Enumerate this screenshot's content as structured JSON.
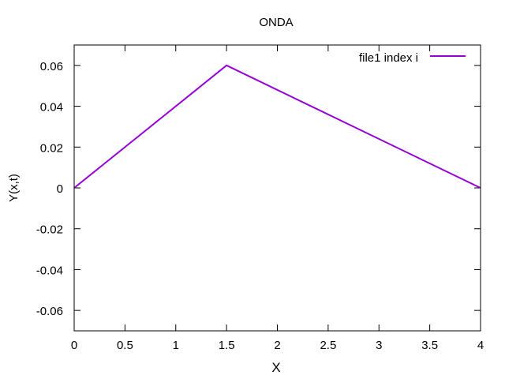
{
  "chart_data": {
    "type": "line",
    "title": "ONDA",
    "xlabel": "X",
    "ylabel": "Y(x,t)",
    "xlim": [
      0,
      4
    ],
    "ylim": [
      -0.07,
      0.07
    ],
    "xticks": [
      "0",
      "0.5",
      "1",
      "1.5",
      "2",
      "2.5",
      "3",
      "3.5",
      "4"
    ],
    "xtick_values": [
      0,
      0.5,
      1,
      1.5,
      2,
      2.5,
      3,
      3.5,
      4
    ],
    "yticks": [
      "-0.06",
      "-0.04",
      "-0.02",
      "0",
      "0.02",
      "0.04",
      "0.06"
    ],
    "ytick_values": [
      -0.06,
      -0.04,
      -0.02,
      0,
      0.02,
      0.04,
      0.06
    ],
    "grid": false,
    "legend_position": "top-right",
    "series": [
      {
        "name": "file1 index i",
        "color": "#9400d3",
        "x": [
          0,
          1.5,
          4
        ],
        "y": [
          0,
          0.06,
          0
        ]
      }
    ]
  }
}
